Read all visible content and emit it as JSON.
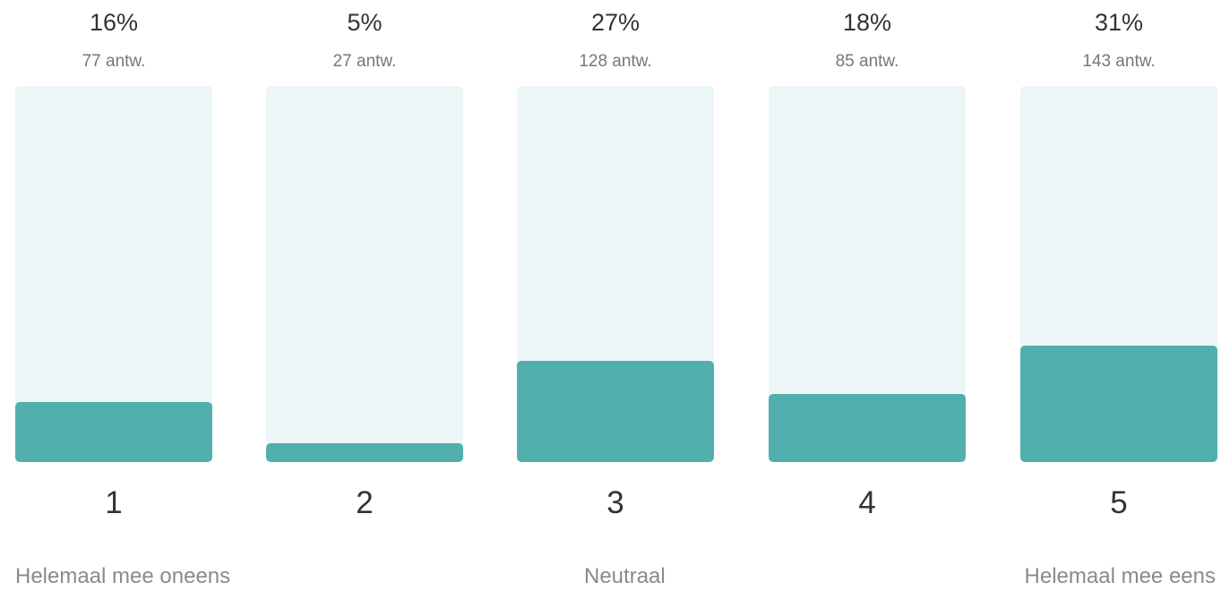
{
  "chart_data": {
    "type": "bar",
    "categories": [
      "1",
      "2",
      "3",
      "4",
      "5"
    ],
    "values": [
      16,
      5,
      27,
      18,
      31
    ],
    "value_labels": [
      "16%",
      "5%",
      "27%",
      "18%",
      "31%"
    ],
    "counts": [
      "77 antw.",
      "27 antw.",
      "128 antw.",
      "85 antw.",
      "143 antw."
    ],
    "ylim": [
      0,
      100
    ],
    "grid": false,
    "scale_labels": {
      "left": "Helemaal mee oneens",
      "middle": "Neutraal",
      "right": "Helemaal mee eens"
    },
    "colors": {
      "bar": "#51afae",
      "track": "#edf6f7"
    }
  }
}
